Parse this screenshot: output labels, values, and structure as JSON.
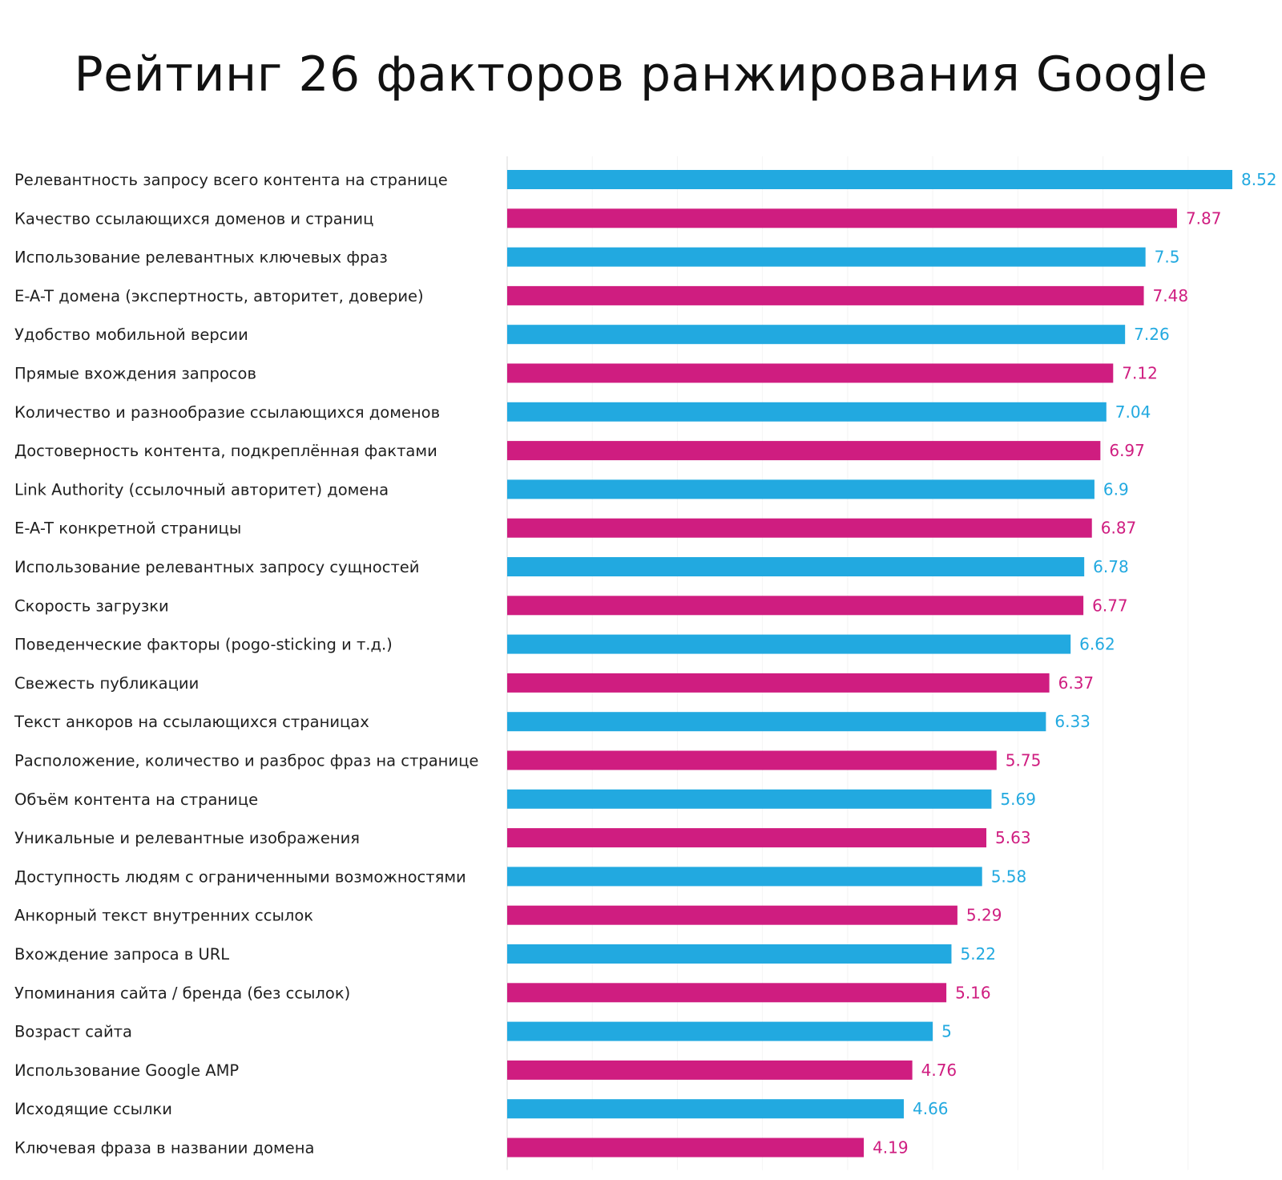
{
  "title": "Рейтинг 26 факторов ранжирования Google",
  "colors": {
    "blue": "#22a9e0",
    "magenta": "#cf1d80"
  },
  "chart_data": {
    "type": "bar",
    "orientation": "horizontal",
    "title": "Рейтинг 26 факторов ранжирования Google",
    "xlabel": "",
    "ylabel": "",
    "xlim": [
      0,
      8.52
    ],
    "grid": false,
    "legend": "none",
    "categories": [
      "Релевантность запросу всего контента на странице",
      "Качество ссылающихся доменов и страниц",
      "Использование релевантных ключевых фраз",
      "E-A-T домена (экспертность, авторитет, доверие)",
      "Удобство мобильной версии",
      "Прямые вхождения запросов",
      "Количество и разнообразие ссылающихся доменов",
      "Достоверность контента, подкреплённая фактами",
      "Link Authority (ссылочный авторитет) домена",
      "E-A-T конкретной страницы",
      "Использование релевантных запросу сущностей",
      "Скорость загрузки",
      "Поведенческие факторы (pogo-sticking и т.д.)",
      "Свежесть публикации",
      "Текст анкоров на ссылающихся страницах",
      "Расположение, количество и разброс фраз на странице",
      "Объём контента на странице",
      "Уникальные и релевантные изображения",
      "Доступность  людям с ограниченными возможностями",
      "Анкорный текст внутренних ссылок",
      "Вхождение запроса в URL",
      "Упоминания сайта / бренда (без ссылок)",
      "Возраст сайта",
      "Использование Google AMP",
      "Исходящие ссылки",
      "Ключевая фраза в названии домена"
    ],
    "values": [
      8.52,
      7.87,
      7.5,
      7.48,
      7.26,
      7.12,
      7.04,
      6.97,
      6.9,
      6.87,
      6.78,
      6.77,
      6.62,
      6.37,
      6.33,
      5.75,
      5.69,
      5.63,
      5.58,
      5.29,
      5.22,
      5.16,
      5,
      4.76,
      4.66,
      4.19
    ],
    "value_labels": [
      "8.52",
      "7.87",
      "7.5",
      "7.48",
      "7.26",
      "7.12",
      "7.04",
      "6.97",
      "6.9",
      "6.87",
      "6.78",
      "6.77",
      "6.62",
      "6.37",
      "6.33",
      "5.75",
      "5.69",
      "5.63",
      "5.58",
      "5.29",
      "5.22",
      "5.16",
      "5",
      "4.76",
      "4.66",
      "4.19"
    ],
    "bar_color_pattern": [
      "blue",
      "magenta"
    ]
  }
}
